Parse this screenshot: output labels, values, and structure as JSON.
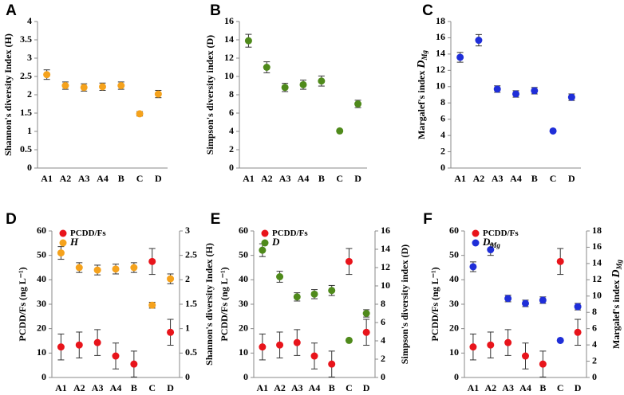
{
  "chart_data": [
    {
      "type": "scatter",
      "label": "A",
      "ylabel": {
        "text": "Shannon's diversity Index (H)"
      },
      "categories": [
        "A1",
        "A2",
        "A3",
        "A4",
        "B",
        "C",
        "D"
      ],
      "ylim": [
        0,
        4
      ],
      "yticks": [
        0,
        0.5,
        1,
        1.5,
        2,
        2.5,
        3,
        3.5,
        4
      ],
      "series": [
        {
          "color": "#f5a21c",
          "values": [
            2.55,
            2.25,
            2.2,
            2.22,
            2.25,
            1.48,
            2.02
          ],
          "errors": [
            0.13,
            0.1,
            0.1,
            0.1,
            0.1,
            0.06,
            0.1
          ]
        }
      ]
    },
    {
      "type": "scatter",
      "label": "B",
      "ylabel": {
        "text": "Simpson's diversity index (D)"
      },
      "categories": [
        "A1",
        "A2",
        "A3",
        "A4",
        "B",
        "C",
        "D"
      ],
      "ylim": [
        0,
        16
      ],
      "yticks": [
        0,
        2,
        4,
        6,
        8,
        10,
        12,
        14,
        16
      ],
      "series": [
        {
          "color": "#4f8a1b",
          "values": [
            13.9,
            11.0,
            8.8,
            9.1,
            9.5,
            4.05,
            7.0
          ],
          "errors": [
            0.7,
            0.6,
            0.45,
            0.5,
            0.55,
            0.1,
            0.4
          ]
        }
      ]
    },
    {
      "type": "scatter",
      "label": "C",
      "ylabel": {
        "text": "Margalef's index ",
        "symbol": "D",
        "subscript": "Mg"
      },
      "categories": [
        "A1",
        "A2",
        "A3",
        "A4",
        "B",
        "C",
        "D"
      ],
      "ylim": [
        0,
        18
      ],
      "yticks": [
        0,
        2,
        4,
        6,
        8,
        10,
        12,
        14,
        16,
        18
      ],
      "series": [
        {
          "color": "#1f2ed8",
          "values": [
            13.6,
            15.7,
            9.7,
            9.1,
            9.5,
            4.55,
            8.7
          ],
          "errors": [
            0.6,
            0.7,
            0.4,
            0.4,
            0.4,
            0.1,
            0.4
          ]
        }
      ]
    },
    {
      "type": "scatter",
      "label": "D",
      "ylabel": {
        "text": "PCDD/Fs (ng L⁻¹)"
      },
      "y2label": {
        "text": "Shannon's diversity Index (H)"
      },
      "categories": [
        "A1",
        "A2",
        "A3",
        "A4",
        "B",
        "C",
        "D"
      ],
      "ylim": [
        0,
        60
      ],
      "yticks": [
        0,
        10,
        20,
        30,
        40,
        50,
        60
      ],
      "y2lim": [
        0,
        3
      ],
      "y2ticks": [
        0,
        0.5,
        1,
        1.5,
        2,
        2.5,
        3
      ],
      "series": [
        {
          "name": "PCDD/Fs",
          "color": "#e8141b",
          "values": [
            12.5,
            13.3,
            14.3,
            8.8,
            5.5,
            47.5,
            18.5
          ],
          "errors": [
            5.3,
            5.3,
            5.3,
            5.3,
            5.3,
            5.3,
            5.3
          ]
        },
        {
          "name": "H",
          "color": "#f5a21c",
          "axis": "y2",
          "values": [
            2.55,
            2.25,
            2.2,
            2.22,
            2.25,
            1.48,
            2.02
          ],
          "errors": [
            0.13,
            0.1,
            0.1,
            0.1,
            0.1,
            0.06,
            0.1
          ]
        }
      ]
    },
    {
      "type": "scatter",
      "label": "E",
      "ylabel": {
        "text": "PCDD/Fs (ng L⁻¹)"
      },
      "y2label": {
        "text": "Simpson's diversity index (D)"
      },
      "categories": [
        "A1",
        "A2",
        "A3",
        "A4",
        "B",
        "C",
        "D"
      ],
      "ylim": [
        0,
        60
      ],
      "yticks": [
        0,
        10,
        20,
        30,
        40,
        50,
        60
      ],
      "y2lim": [
        0,
        16
      ],
      "y2ticks": [
        0,
        2,
        4,
        6,
        8,
        10,
        12,
        14,
        16
      ],
      "series": [
        {
          "name": "PCDD/Fs",
          "color": "#e8141b",
          "values": [
            12.5,
            13.3,
            14.3,
            8.8,
            5.5,
            47.5,
            18.5
          ],
          "errors": [
            5.3,
            5.3,
            5.3,
            5.3,
            5.3,
            5.3,
            5.3
          ]
        },
        {
          "name": "D",
          "color": "#4f8a1b",
          "axis": "y2",
          "values": [
            13.9,
            11.0,
            8.8,
            9.1,
            9.5,
            4.05,
            7.0
          ],
          "errors": [
            0.7,
            0.6,
            0.45,
            0.5,
            0.55,
            0.1,
            0.4
          ]
        }
      ]
    },
    {
      "type": "scatter",
      "label": "F",
      "ylabel": {
        "text": "PCDD/Fs (ng L⁻¹)"
      },
      "y2label": {
        "text": "Margalef's index ",
        "symbol": "D",
        "subscript": "Mg"
      },
      "categories": [
        "A1",
        "A2",
        "A3",
        "A4",
        "B",
        "C",
        "D"
      ],
      "ylim": [
        0,
        60
      ],
      "yticks": [
        0,
        10,
        20,
        30,
        40,
        50,
        60
      ],
      "y2lim": [
        0,
        18
      ],
      "y2ticks": [
        0,
        2,
        4,
        6,
        8,
        10,
        12,
        14,
        16,
        18
      ],
      "series": [
        {
          "name": "PCDD/Fs",
          "color": "#e8141b",
          "values": [
            12.5,
            13.3,
            14.3,
            8.8,
            5.5,
            47.5,
            18.5
          ],
          "errors": [
            5.3,
            5.3,
            5.3,
            5.3,
            5.3,
            5.3,
            5.3
          ]
        },
        {
          "name": "D",
          "name_subscript": "Mg",
          "color": "#1f2ed8",
          "axis": "y2",
          "values": [
            13.6,
            15.7,
            9.7,
            9.1,
            9.5,
            4.55,
            8.7
          ],
          "errors": [
            0.6,
            0.7,
            0.4,
            0.4,
            0.4,
            0.1,
            0.4
          ]
        }
      ]
    }
  ]
}
